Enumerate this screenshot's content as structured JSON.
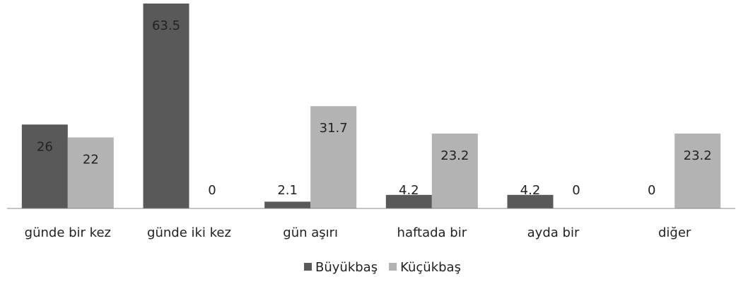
{
  "chart_data": {
    "type": "bar",
    "categories": [
      "günde bir kez",
      "günde iki kez",
      "gün aşırı",
      "haftada bir",
      "ayda bir",
      "diğer"
    ],
    "series": [
      {
        "name": "Büyükbaş",
        "color": "#595959",
        "values": [
          26,
          63.5,
          2.1,
          4.2,
          4.2,
          0
        ]
      },
      {
        "name": "Küçükbaş",
        "color": "#b3b3b3",
        "values": [
          22,
          0,
          31.7,
          23.2,
          0,
          23.2
        ]
      }
    ],
    "legend": "bottom"
  }
}
